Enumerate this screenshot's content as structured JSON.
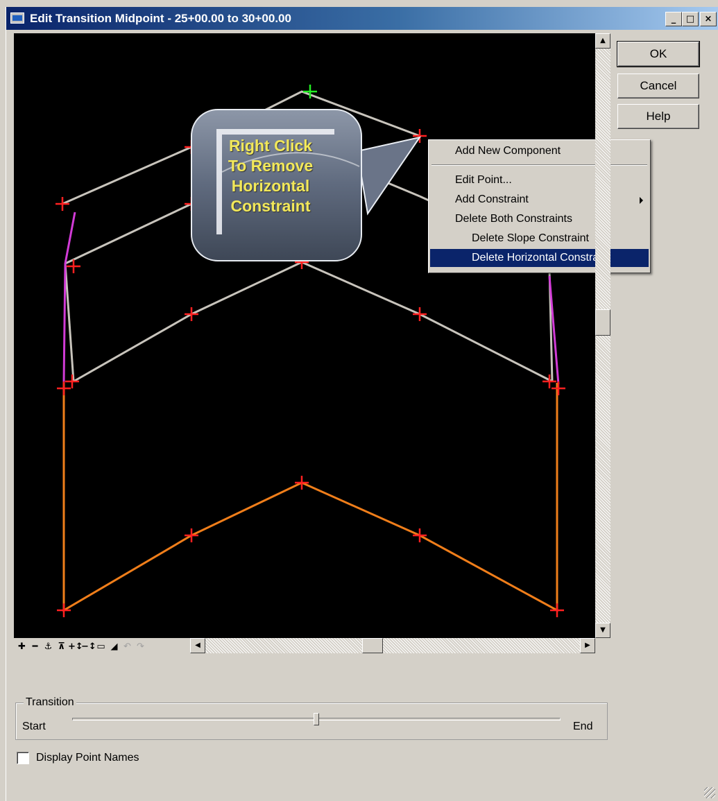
{
  "window": {
    "title": "Edit Transition Midpoint - 25+00.00 to 30+00.00",
    "minimize_glyph": "_",
    "maximize_glyph": "□",
    "close_glyph": "×"
  },
  "buttons": {
    "ok": "OK",
    "cancel": "Cancel",
    "help": "Help"
  },
  "callout": {
    "text": "Right Click\nTo Remove\nHorizontal\nConstraint"
  },
  "context_menu": {
    "items": [
      "Add New Component",
      "Edit Point...",
      "Add Constraint",
      "Delete Both Constraints",
      "Delete Slope Constraint",
      "Delete Horizontal Constraint"
    ],
    "selected": "Delete Horizontal Constraint"
  },
  "toolbar": {
    "icons": [
      "zoom-in-icon",
      "zoom-out-icon",
      "zoom-extents-icon",
      "zoom-window-icon",
      "pan-vertical-icon",
      "pan-horizontal-icon",
      "fit-view-icon",
      "terrain-icon",
      "undo-icon",
      "redo-icon"
    ],
    "glyphs": [
      "✚",
      "━",
      "⚓",
      "⊼",
      "+↕",
      "−↕",
      "▭",
      "◢",
      "↶",
      "↷"
    ]
  },
  "transition": {
    "group_label": "Transition",
    "start_label": "Start",
    "end_label": "End",
    "slider_position": 0.5
  },
  "checkbox": {
    "label": "Display Point Names",
    "checked": false
  },
  "colors": {
    "component_lines": "#c8c4bc",
    "constraint_magenta": "#d13bd6",
    "bottom_orange": "#f07e1a",
    "point_red": "#ff2020",
    "point_green": "#22ee22",
    "menu_highlight": "#0a246a",
    "callout_text": "#f2e85a"
  }
}
